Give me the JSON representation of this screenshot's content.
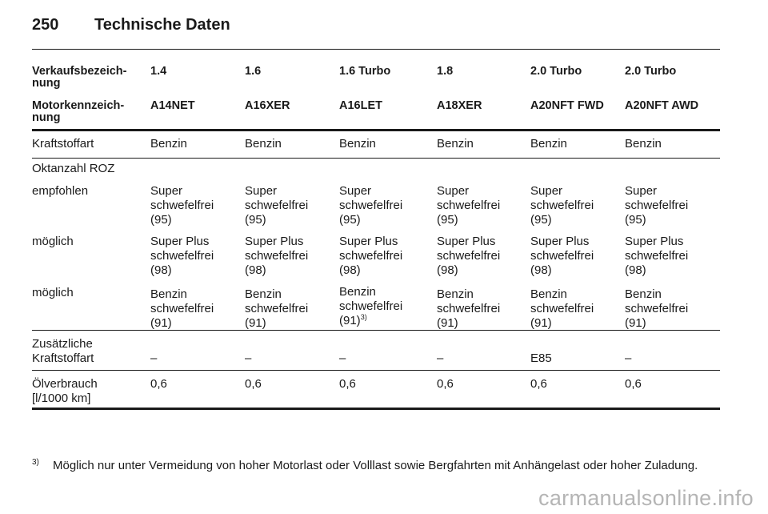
{
  "page": {
    "number": "250",
    "title": "Technische Daten"
  },
  "header": {
    "rows": [
      {
        "label": [
          "Verkaufsbezeich-",
          "nung"
        ],
        "values": [
          "1.4",
          "1.6",
          "1.6 Turbo",
          "1.8",
          "2.0 Turbo",
          "2.0 Turbo"
        ]
      },
      {
        "label": [
          "Motorkennzeich-",
          "nung"
        ],
        "values": [
          "A14NET",
          "A16XER",
          "A16LET",
          "A18XER",
          "A20NFT FWD",
          "A20NFT AWD"
        ]
      }
    ]
  },
  "rows": {
    "kraftstoff": {
      "label": "Kraftstoffart",
      "values": [
        "Benzin",
        "Benzin",
        "Benzin",
        "Benzin",
        "Benzin",
        "Benzin"
      ]
    },
    "oktan": {
      "label": "Oktanzahl ROZ"
    },
    "empfohlen": {
      "label": "empfohlen",
      "lines": [
        "Super",
        "schwefelfrei",
        "(95)"
      ]
    },
    "moeglich1": {
      "label": "möglich",
      "lines": [
        "Super Plus",
        "schwefelfrei",
        "(98)"
      ]
    },
    "moeglich2": {
      "label": "möglich",
      "lines": [
        "Benzin",
        "schwefelfrei",
        "(91)"
      ],
      "footnote_ref": "3)"
    },
    "zusatz": {
      "label": [
        "Zusätzliche",
        "Kraftstoffart"
      ],
      "values": [
        "–",
        "–",
        "–",
        "–",
        "E85",
        "–"
      ]
    },
    "oel": {
      "label": [
        "Ölverbrauch",
        "[l/1000 km]"
      ],
      "values": [
        "0,6",
        "0,6",
        "0,6",
        "0,6",
        "0,6",
        "0,6"
      ]
    }
  },
  "footnote": {
    "mark": "3)",
    "text": "Möglich nur unter Vermeidung von hoher Motorlast oder Volllast sowie Bergfahrten mit Anhängelast oder hoher Zuladung."
  },
  "watermark": "carmanualsonline.info"
}
